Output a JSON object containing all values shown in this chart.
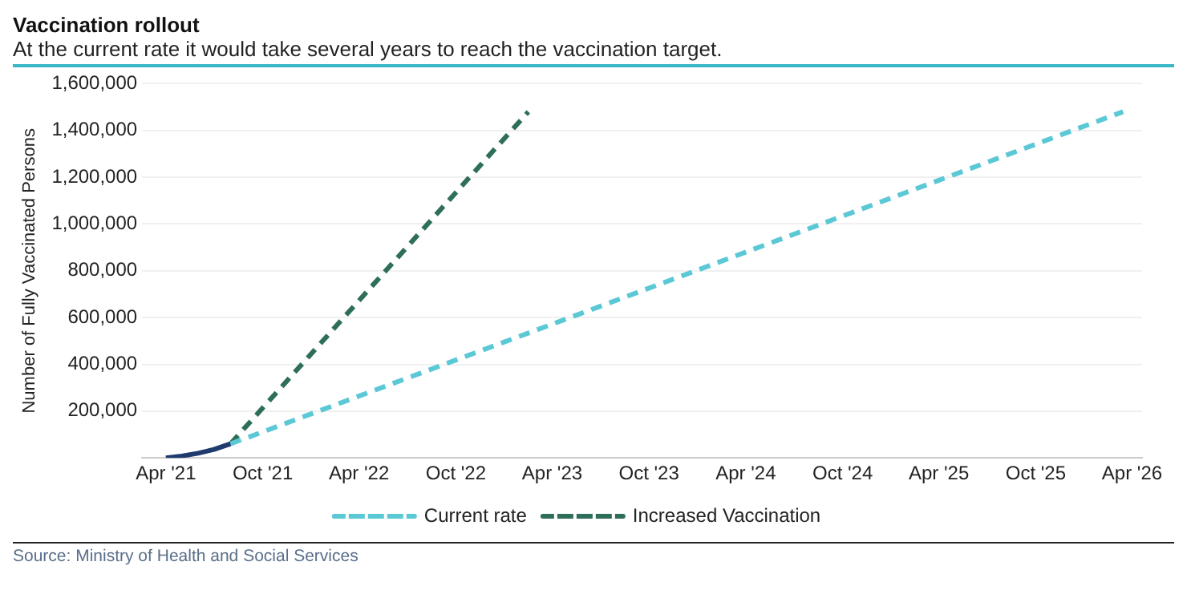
{
  "chart_data": {
    "type": "line",
    "title": "Vaccination rollout",
    "subtitle": "At the current rate it would take several years to reach the vaccination target.",
    "ylabel": "Number of Fully Vaccinated Persons",
    "annotations": [
      "Source: Ministry of Health and Social Services"
    ],
    "series": [
      {
        "color": "#1f3b6e",
        "line_style": "solid",
        "x": [
          "2021-04-01",
          "2021-05-01",
          "2021-06-01",
          "2021-07-01",
          "2021-08-01"
        ],
        "values": [
          0,
          8000,
          20000,
          36000,
          60000
        ]
      },
      {
        "name": "Current rate",
        "color": "#5bc8d6",
        "line_style": "dashed",
        "x": [
          "2021-08-01",
          "2026-03-15"
        ],
        "values": [
          60000,
          1480000
        ]
      },
      {
        "name": "Increased Vaccination",
        "color": "#2e6e5a",
        "line_style": "dashed",
        "x": [
          "2021-08-01",
          "2023-02-15"
        ],
        "values": [
          60000,
          1480000
        ]
      }
    ],
    "xlim": [
      "2021-02-15",
      "2026-04-20"
    ],
    "xticks": [
      {
        "value": "2021-04",
        "label": "Apr '21"
      },
      {
        "value": "2021-10",
        "label": "Oct '21"
      },
      {
        "value": "2022-04",
        "label": "Apr '22"
      },
      {
        "value": "2022-10",
        "label": "Oct '22"
      },
      {
        "value": "2023-04",
        "label": "Apr '23"
      },
      {
        "value": "2023-10",
        "label": "Oct '23"
      },
      {
        "value": "2024-04",
        "label": "Apr '24"
      },
      {
        "value": "2024-10",
        "label": "Oct '24"
      },
      {
        "value": "2025-04",
        "label": "Apr '25"
      },
      {
        "value": "2025-10",
        "label": "Oct '25"
      },
      {
        "value": "2026-04",
        "label": "Apr '26"
      }
    ],
    "ylim": [
      0,
      1600000
    ],
    "yticks": [
      {
        "value": 0,
        "label": null
      },
      {
        "value": 200000,
        "label": "200,000"
      },
      {
        "value": 400000,
        "label": "400,000"
      },
      {
        "value": 600000,
        "label": "600,000"
      },
      {
        "value": 800000,
        "label": "800,000"
      },
      {
        "value": 1000000,
        "label": "1,000,000"
      },
      {
        "value": 1200000,
        "label": "1,200,000"
      },
      {
        "value": 1400000,
        "label": "1,400,000"
      },
      {
        "value": 1600000,
        "label": "1,600,000"
      }
    ],
    "grid": "y",
    "legend": "bottom",
    "marker": "none"
  }
}
